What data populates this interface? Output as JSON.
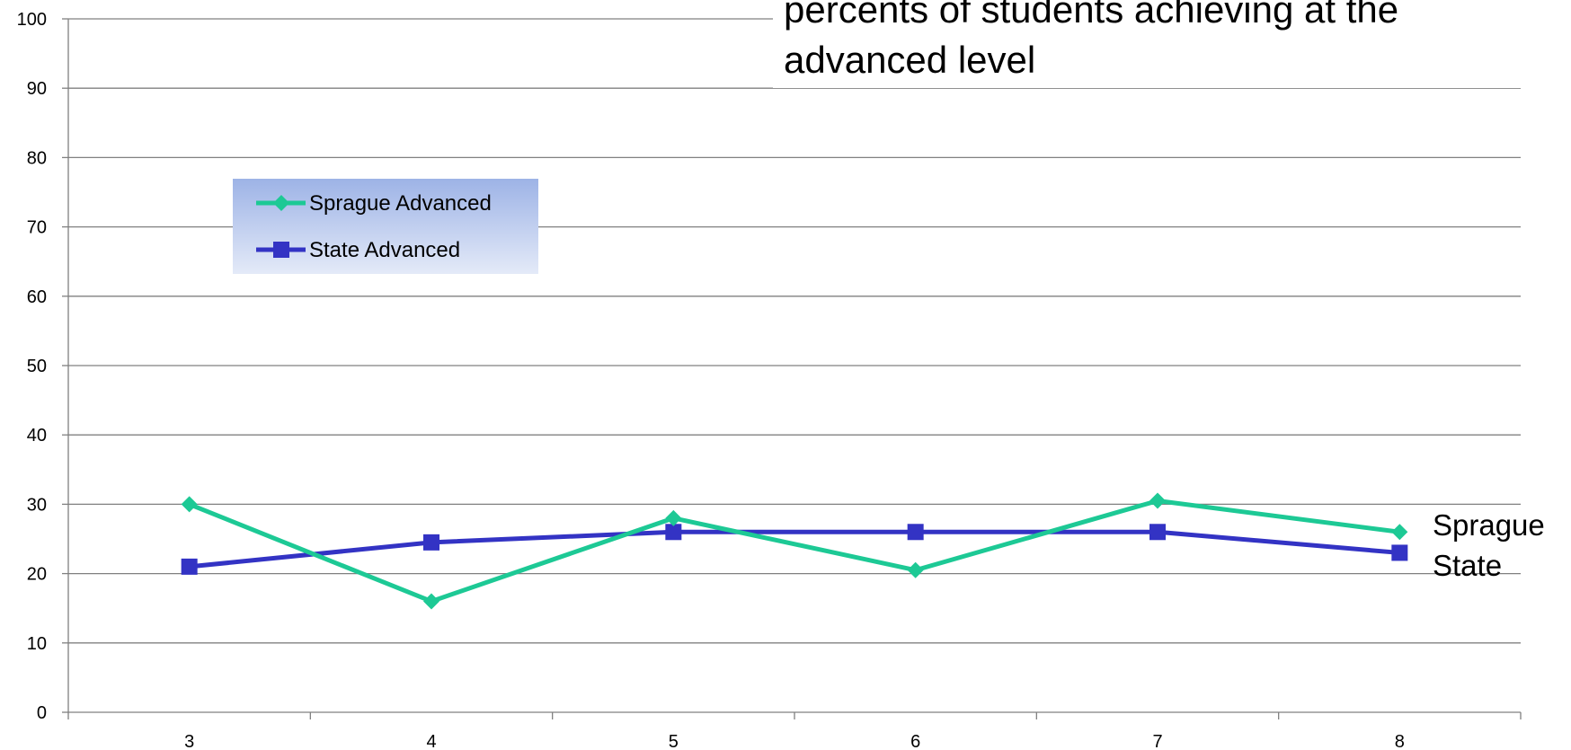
{
  "chart_data": {
    "type": "line",
    "title_lines": [
      "percents of students achieving at the",
      "advanced level"
    ],
    "xlabel": "",
    "ylabel": "",
    "categories": [
      "3",
      "4",
      "5",
      "6",
      "7",
      "8"
    ],
    "ylim": [
      0,
      100
    ],
    "yticks": [
      "0",
      "10",
      "20",
      "30",
      "40",
      "50",
      "60",
      "70",
      "80",
      "90",
      "100"
    ],
    "grid": true,
    "legend_position": "upper-left",
    "series": [
      {
        "name": "Sprague Advanced",
        "end_label": "Sprague",
        "marker": "diamond",
        "color": "#1DC995",
        "values": [
          30,
          16,
          28,
          20.5,
          30.5,
          26
        ]
      },
      {
        "name": "State Advanced",
        "end_label": "State",
        "marker": "square",
        "color": "#3333C4",
        "values": [
          21,
          24.5,
          26,
          26,
          26,
          23
        ]
      }
    ],
    "colors": {
      "legend_top": "#9DB3E6",
      "legend_bottom": "#E4EAF8",
      "grid": "#808080",
      "axis": "#808080"
    }
  }
}
